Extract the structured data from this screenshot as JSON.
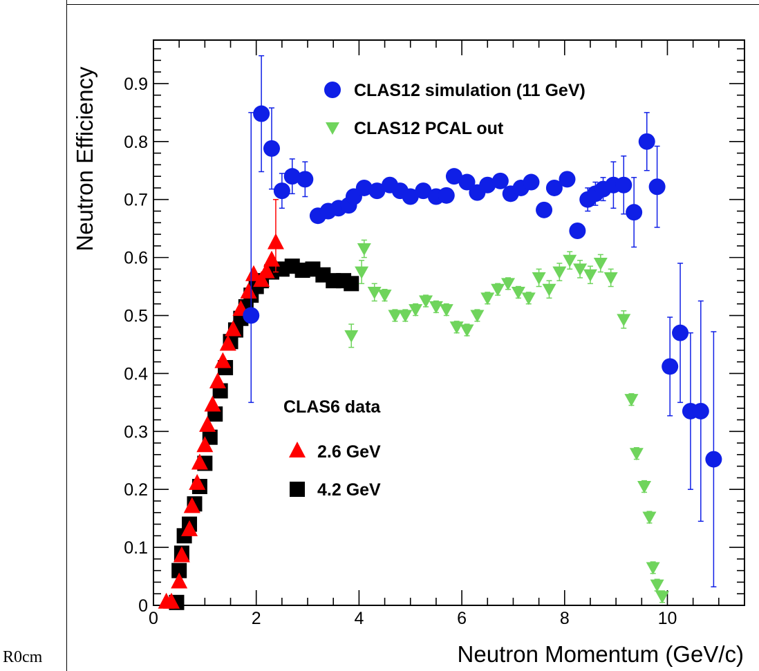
{
  "margin_text": "R0cm",
  "chart_data": {
    "type": "scatter",
    "xlabel": "Neutron Momentum (GeV/c)",
    "ylabel": "Neutron Efficiency",
    "xlim": [
      0,
      11.5
    ],
    "ylim": [
      0,
      0.975
    ],
    "x_ticks": [
      0,
      2,
      4,
      6,
      8,
      10
    ],
    "x_tick_labels": [
      "0",
      "2",
      "4",
      "6",
      "8",
      "10"
    ],
    "y_ticks": [
      0,
      0.1,
      0.2,
      0.3,
      0.4,
      0.5,
      0.6,
      0.7,
      0.8,
      0.9
    ],
    "y_tick_labels": [
      "0",
      "0.1",
      "0.2",
      "0.3",
      "0.4",
      "0.5",
      "0.6",
      "0.7",
      "0.8",
      "0.9"
    ],
    "grid": false,
    "legend_top": {
      "position": "top-right",
      "entries": [
        {
          "label": "CLAS12 simulation (11 GeV)",
          "series": 0
        },
        {
          "label": "CLAS12 PCAL out",
          "series": 1
        }
      ]
    },
    "legend_bottom": {
      "position": "center-left",
      "title": "CLAS6 data",
      "entries": [
        {
          "label": "2.6 GeV",
          "series": 2
        },
        {
          "label": "4.2 GeV",
          "series": 3
        }
      ]
    },
    "series": [
      {
        "name": "CLAS12 simulation (11 GeV)",
        "marker": "circle",
        "color": "#0f1fe6",
        "points": [
          [
            1.9,
            0.5,
            0.15,
            0.35
          ],
          [
            2.1,
            0.848,
            0.1,
            0.1
          ],
          [
            2.3,
            0.788,
            0.07,
            0.07
          ],
          [
            2.5,
            0.715,
            0.03,
            0.03
          ],
          [
            2.7,
            0.74,
            0.03,
            0.03
          ],
          [
            2.95,
            0.735,
            0.03,
            0.03
          ],
          [
            3.2,
            0.672,
            0.01,
            0.01
          ],
          [
            3.4,
            0.68,
            0.01,
            0.01
          ],
          [
            3.6,
            0.685,
            0.01,
            0.01
          ],
          [
            3.8,
            0.69,
            0.01,
            0.01
          ],
          [
            3.9,
            0.705,
            0.01,
            0.01
          ],
          [
            4.1,
            0.72,
            0.01,
            0.01
          ],
          [
            4.35,
            0.715,
            0.01,
            0.01
          ],
          [
            4.6,
            0.725,
            0.01,
            0.01
          ],
          [
            4.8,
            0.715,
            0.01,
            0.01
          ],
          [
            5.0,
            0.705,
            0.01,
            0.01
          ],
          [
            5.25,
            0.715,
            0.01,
            0.01
          ],
          [
            5.5,
            0.705,
            0.01,
            0.01
          ],
          [
            5.7,
            0.707,
            0.01,
            0.01
          ],
          [
            5.85,
            0.74,
            0.01,
            0.01
          ],
          [
            6.1,
            0.73,
            0.01,
            0.01
          ],
          [
            6.3,
            0.712,
            0.01,
            0.01
          ],
          [
            6.5,
            0.725,
            0.01,
            0.01
          ],
          [
            6.75,
            0.732,
            0.01,
            0.01
          ],
          [
            6.95,
            0.71,
            0.01,
            0.01
          ],
          [
            7.15,
            0.72,
            0.01,
            0.01
          ],
          [
            7.35,
            0.73,
            0.01,
            0.01
          ],
          [
            7.6,
            0.682,
            0.01,
            0.01
          ],
          [
            7.8,
            0.72,
            0.01,
            0.01
          ],
          [
            8.05,
            0.735,
            0.01,
            0.01
          ],
          [
            8.25,
            0.646,
            0.01,
            0.01
          ],
          [
            8.45,
            0.7,
            0.02,
            0.02
          ],
          [
            8.6,
            0.71,
            0.02,
            0.02
          ],
          [
            8.75,
            0.718,
            0.02,
            0.02
          ],
          [
            8.95,
            0.725,
            0.04,
            0.04
          ],
          [
            9.15,
            0.725,
            0.05,
            0.05
          ],
          [
            9.35,
            0.678,
            0.06,
            0.06
          ],
          [
            9.6,
            0.8,
            0.05,
            0.05
          ],
          [
            9.8,
            0.722,
            0.07,
            0.07
          ],
          [
            10.05,
            0.412,
            0.085,
            0.085
          ],
          [
            10.25,
            0.47,
            0.12,
            0.12
          ],
          [
            10.45,
            0.335,
            0.135,
            0.135
          ],
          [
            10.65,
            0.335,
            0.19,
            0.19
          ],
          [
            10.9,
            0.252,
            0.22,
            0.22
          ]
        ]
      },
      {
        "name": "CLAS12 PCAL out",
        "marker": "triangle-down",
        "color": "#6fd45c",
        "points": [
          [
            3.85,
            0.465,
            0.02,
            0.02
          ],
          [
            4.05,
            0.575,
            0.02,
            0.02
          ],
          [
            4.1,
            0.615,
            0.015,
            0.015
          ],
          [
            4.3,
            0.54,
            0.015,
            0.015
          ],
          [
            4.5,
            0.535,
            0.01,
            0.01
          ],
          [
            4.7,
            0.5,
            0.01,
            0.01
          ],
          [
            4.9,
            0.5,
            0.01,
            0.01
          ],
          [
            5.1,
            0.51,
            0.01,
            0.01
          ],
          [
            5.3,
            0.525,
            0.01,
            0.01
          ],
          [
            5.5,
            0.515,
            0.01,
            0.01
          ],
          [
            5.7,
            0.51,
            0.01,
            0.01
          ],
          [
            5.9,
            0.48,
            0.01,
            0.01
          ],
          [
            6.1,
            0.475,
            0.01,
            0.01
          ],
          [
            6.3,
            0.5,
            0.01,
            0.01
          ],
          [
            6.5,
            0.53,
            0.01,
            0.01
          ],
          [
            6.7,
            0.545,
            0.01,
            0.01
          ],
          [
            6.9,
            0.555,
            0.01,
            0.01
          ],
          [
            7.1,
            0.54,
            0.01,
            0.01
          ],
          [
            7.3,
            0.53,
            0.01,
            0.01
          ],
          [
            7.5,
            0.565,
            0.015,
            0.015
          ],
          [
            7.7,
            0.545,
            0.015,
            0.015
          ],
          [
            7.9,
            0.575,
            0.015,
            0.015
          ],
          [
            8.1,
            0.595,
            0.015,
            0.015
          ],
          [
            8.3,
            0.58,
            0.015,
            0.015
          ],
          [
            8.5,
            0.57,
            0.015,
            0.015
          ],
          [
            8.7,
            0.59,
            0.015,
            0.015
          ],
          [
            8.9,
            0.565,
            0.015,
            0.015
          ],
          [
            9.15,
            0.493,
            0.015,
            0.015
          ],
          [
            9.3,
            0.355,
            0.01,
            0.01
          ],
          [
            9.4,
            0.262,
            0.01,
            0.01
          ],
          [
            9.55,
            0.205,
            0.01,
            0.01
          ],
          [
            9.65,
            0.152,
            0.01,
            0.01
          ],
          [
            9.72,
            0.065,
            0.01,
            0.01
          ],
          [
            9.8,
            0.035,
            0.01,
            0.01
          ],
          [
            9.9,
            0.015,
            0.01,
            0.01
          ]
        ]
      },
      {
        "name": "2.6 GeV",
        "marker": "triangle-up",
        "color": "#ff0000",
        "points": [
          [
            0.25,
            0.005,
            0,
            0
          ],
          [
            0.35,
            0.005,
            0,
            0
          ],
          [
            0.5,
            0.04,
            0,
            0
          ],
          [
            0.55,
            0.085,
            0,
            0
          ],
          [
            0.7,
            0.13,
            0,
            0
          ],
          [
            0.75,
            0.17,
            0,
            0
          ],
          [
            0.85,
            0.21,
            0,
            0
          ],
          [
            0.9,
            0.245,
            0,
            0
          ],
          [
            1.0,
            0.275,
            0,
            0
          ],
          [
            1.05,
            0.31,
            0,
            0
          ],
          [
            1.15,
            0.345,
            0,
            0
          ],
          [
            1.25,
            0.385,
            0,
            0
          ],
          [
            1.35,
            0.42,
            0,
            0
          ],
          [
            1.45,
            0.45,
            0,
            0
          ],
          [
            1.55,
            0.475,
            0,
            0
          ],
          [
            1.7,
            0.51,
            0,
            0
          ],
          [
            1.85,
            0.54,
            0,
            0
          ],
          [
            1.95,
            0.57,
            0,
            0
          ],
          [
            2.1,
            0.56,
            0,
            0
          ],
          [
            2.2,
            0.575,
            0,
            0
          ],
          [
            2.3,
            0.595,
            0,
            0
          ],
          [
            2.38,
            0.625,
            0.05,
            0.075
          ]
        ]
      },
      {
        "name": "4.2 GeV",
        "marker": "square",
        "color": "#000000",
        "points": [
          [
            0.45,
            0.005,
            0,
            0
          ],
          [
            0.5,
            0.06,
            0,
            0
          ],
          [
            0.55,
            0.09,
            0,
            0
          ],
          [
            0.6,
            0.12,
            0,
            0
          ],
          [
            0.7,
            0.14,
            0,
            0
          ],
          [
            0.8,
            0.175,
            0,
            0
          ],
          [
            0.9,
            0.205,
            0,
            0
          ],
          [
            1.0,
            0.245,
            0,
            0
          ],
          [
            1.1,
            0.29,
            0,
            0
          ],
          [
            1.2,
            0.33,
            0,
            0
          ],
          [
            1.3,
            0.37,
            0,
            0
          ],
          [
            1.4,
            0.41,
            0,
            0
          ],
          [
            1.5,
            0.455,
            0,
            0
          ],
          [
            1.6,
            0.475,
            0,
            0
          ],
          [
            1.7,
            0.495,
            0,
            0
          ],
          [
            1.8,
            0.515,
            0,
            0
          ],
          [
            1.9,
            0.535,
            0,
            0
          ],
          [
            2.0,
            0.55,
            0,
            0
          ],
          [
            2.1,
            0.56,
            0,
            0
          ],
          [
            2.3,
            0.575,
            0,
            0
          ],
          [
            2.5,
            0.58,
            0,
            0
          ],
          [
            2.7,
            0.585,
            0,
            0
          ],
          [
            2.9,
            0.578,
            0,
            0
          ],
          [
            3.1,
            0.58,
            0,
            0
          ],
          [
            3.3,
            0.57,
            0,
            0
          ],
          [
            3.5,
            0.56,
            0,
            0
          ],
          [
            3.7,
            0.56,
            0,
            0
          ],
          [
            3.85,
            0.555,
            0,
            0
          ]
        ]
      }
    ]
  }
}
